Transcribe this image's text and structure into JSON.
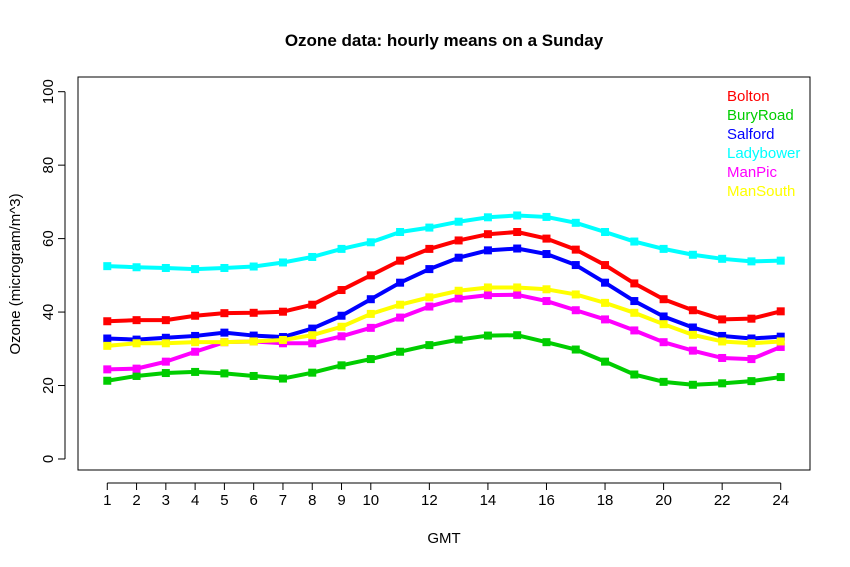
{
  "chart_data": {
    "type": "line",
    "title": "Ozone data: hourly means on a Sunday",
    "xlabel": "GMT",
    "ylabel": "Ozone (microgram/m^3)",
    "xlim": [
      0,
      25
    ],
    "ylim": [
      -3,
      104
    ],
    "x_ticks": [
      1,
      2,
      3,
      4,
      5,
      6,
      7,
      8,
      9,
      10,
      12,
      14,
      16,
      18,
      20,
      22,
      24
    ],
    "y_ticks": [
      0,
      20,
      40,
      60,
      80,
      100
    ],
    "legend_position": "top-right",
    "x": [
      1,
      2,
      3,
      4,
      5,
      6,
      7,
      8,
      9,
      10,
      11,
      12,
      13,
      14,
      15,
      16,
      17,
      18,
      19,
      20,
      21,
      22,
      23,
      24
    ],
    "series": [
      {
        "name": "Bolton",
        "color": "#ff0000",
        "values": [
          37.5,
          37.8,
          37.8,
          39.0,
          39.7,
          39.8,
          40.1,
          42.0,
          46.0,
          50.0,
          54.0,
          57.2,
          59.5,
          61.2,
          61.8,
          60.0,
          57.0,
          52.8,
          47.8,
          43.5,
          40.5,
          38.0,
          38.2,
          40.2
        ]
      },
      {
        "name": "BuryRoad",
        "color": "#00cd00",
        "values": [
          21.3,
          22.6,
          23.4,
          23.7,
          23.3,
          22.6,
          21.9,
          23.5,
          25.5,
          27.2,
          29.2,
          31.0,
          32.5,
          33.6,
          33.7,
          31.8,
          29.8,
          26.5,
          23.0,
          21.0,
          20.2,
          20.6,
          21.2,
          22.3
        ]
      },
      {
        "name": "Salford",
        "color": "#0000ff",
        "values": [
          32.8,
          32.5,
          33.0,
          33.5,
          34.4,
          33.6,
          33.2,
          35.5,
          39.0,
          43.5,
          48.0,
          51.7,
          54.8,
          56.8,
          57.3,
          55.8,
          52.8,
          48.0,
          43.0,
          38.8,
          35.8,
          33.5,
          32.8,
          33.3
        ]
      },
      {
        "name": "Ladybower",
        "color": "#00ffff",
        "values": [
          52.5,
          52.2,
          52.0,
          51.7,
          52.0,
          52.4,
          53.5,
          55.0,
          57.2,
          59.0,
          61.8,
          63.0,
          64.6,
          65.8,
          66.3,
          65.9,
          64.3,
          61.8,
          59.2,
          57.2,
          55.6,
          54.5,
          53.8,
          54.0
        ]
      },
      {
        "name": "ManPic",
        "color": "#ff00ff",
        "values": [
          24.4,
          24.6,
          26.5,
          29.2,
          31.8,
          32.0,
          31.5,
          31.5,
          33.4,
          35.7,
          38.5,
          41.5,
          43.7,
          44.6,
          44.7,
          43.0,
          40.5,
          38.0,
          35.0,
          31.8,
          29.5,
          27.5,
          27.2,
          30.5
        ]
      },
      {
        "name": "ManSouth",
        "color": "#ffff00",
        "values": [
          30.8,
          31.5,
          31.5,
          31.8,
          31.8,
          32.0,
          32.4,
          33.7,
          36.0,
          39.5,
          42.0,
          44.0,
          45.8,
          46.7,
          46.7,
          46.2,
          44.8,
          42.5,
          39.8,
          36.7,
          33.8,
          32.0,
          31.5,
          32.0
        ]
      }
    ]
  }
}
